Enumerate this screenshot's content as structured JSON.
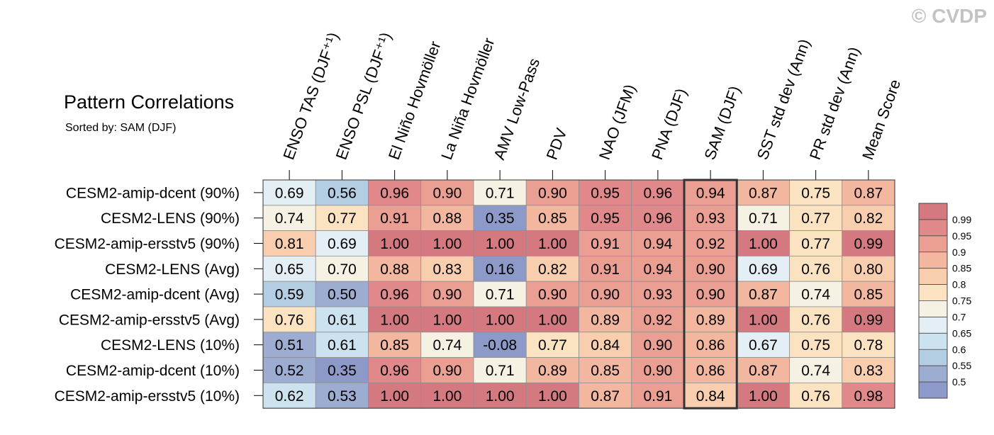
{
  "watermark": "© CVDP",
  "chart_data": {
    "type": "heatmap",
    "title": "Pattern Correlations",
    "subtitle": "Sorted by: SAM (DJF)",
    "highlight_column": "SAM (DJF)",
    "columns": [
      "ENSO TAS (DJF⁺¹)",
      "ENSO PSL (DJF⁺¹)",
      "El Niño Hovmöller",
      "La Niña Hovmöller",
      "AMV Low-Pass",
      "PDV",
      "NAO (JFM)",
      "PNA (DJF)",
      "SAM (DJF)",
      "SST std dev (Ann)",
      "PR std dev (Ann)",
      "Mean Score"
    ],
    "rows": [
      "CESM2-amip-dcent (90%)",
      "CESM2-LENS (90%)",
      "CESM2-amip-ersstv5 (90%)",
      "CESM2-LENS (Avg)",
      "CESM2-amip-dcent (Avg)",
      "CESM2-amip-ersstv5 (Avg)",
      "CESM2-LENS (10%)",
      "CESM2-amip-dcent (10%)",
      "CESM2-amip-ersstv5 (10%)"
    ],
    "values": [
      [
        "0.69",
        "0.56",
        "0.96",
        "0.90",
        "0.71",
        "0.90",
        "0.95",
        "0.96",
        "0.94",
        "0.87",
        "0.75",
        "0.87"
      ],
      [
        "0.74",
        "0.77",
        "0.91",
        "0.88",
        "0.35",
        "0.85",
        "0.95",
        "0.96",
        "0.93",
        "0.71",
        "0.77",
        "0.82"
      ],
      [
        "0.81",
        "0.69",
        "1.00",
        "1.00",
        "1.00",
        "1.00",
        "0.91",
        "0.94",
        "0.92",
        "1.00",
        "0.77",
        "0.99"
      ],
      [
        "0.65",
        "0.70",
        "0.88",
        "0.83",
        "0.16",
        "0.82",
        "0.91",
        "0.94",
        "0.90",
        "0.69",
        "0.76",
        "0.80"
      ],
      [
        "0.59",
        "0.50",
        "0.96",
        "0.90",
        "0.71",
        "0.90",
        "0.90",
        "0.93",
        "0.90",
        "0.87",
        "0.74",
        "0.85"
      ],
      [
        "0.76",
        "0.61",
        "1.00",
        "1.00",
        "1.00",
        "1.00",
        "0.89",
        "0.92",
        "0.89",
        "1.00",
        "0.76",
        "0.99"
      ],
      [
        "0.51",
        "0.61",
        "0.85",
        "0.74",
        "-0.08",
        "0.77",
        "0.84",
        "0.90",
        "0.86",
        "0.67",
        "0.75",
        "0.78"
      ],
      [
        "0.52",
        "0.35",
        "0.96",
        "0.90",
        "0.71",
        "0.89",
        "0.85",
        "0.90",
        "0.86",
        "0.87",
        "0.74",
        "0.83"
      ],
      [
        "0.62",
        "0.53",
        "1.00",
        "1.00",
        "1.00",
        "1.00",
        "0.87",
        "0.91",
        "0.84",
        "1.00",
        "0.76",
        "0.98"
      ]
    ],
    "legend": {
      "placement": "right",
      "levels": [
        "0.99",
        "0.95",
        "0.9",
        "0.85",
        "0.8",
        "0.75",
        "0.7",
        "0.65",
        "0.6",
        "0.55",
        "0.5"
      ],
      "colors": [
        "#d4797f",
        "#e1898a",
        "#eb9f93",
        "#f3b7a0",
        "#f9ceae",
        "#fbe3c1",
        "#f5f2e4",
        "#e3eff5",
        "#cce2ee",
        "#b3cde2",
        "#9dadd2",
        "#8d9ac9"
      ]
    }
  }
}
